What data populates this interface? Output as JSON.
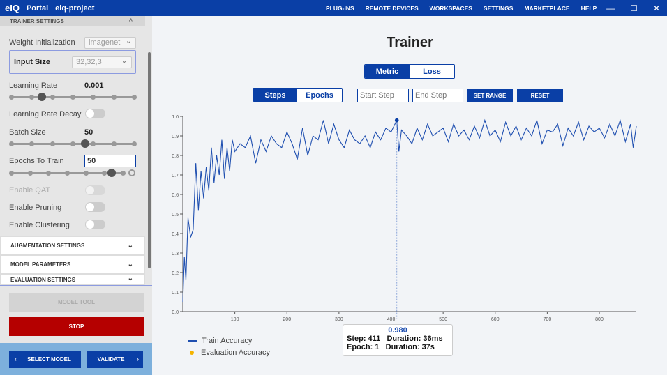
{
  "topbar": {
    "logo": "eIQ",
    "app": "Portal",
    "project": "eiq-project",
    "nav": [
      "PLUG-INS",
      "REMOTE DEVICES",
      "WORKSPACES",
      "SETTINGS",
      "MARKETPLACE",
      "HELP"
    ]
  },
  "sidebar": {
    "section_title": "TRAINER SETTINGS",
    "weight_init": {
      "label": "Weight Initialization",
      "value": "imagenet"
    },
    "input_size": {
      "label": "Input Size",
      "value": "32,32,3"
    },
    "learning_rate": {
      "label": "Learning Rate",
      "value": "0.001",
      "level": 0.25
    },
    "lr_decay": {
      "label": "Learning Rate Decay",
      "on": false
    },
    "batch_size": {
      "label": "Batch Size",
      "value": "50",
      "level": 0.6
    },
    "epochs": {
      "label": "Epochs To Train",
      "value": "50",
      "level": 0.9
    },
    "qat": {
      "label": "Enable QAT",
      "on": false,
      "disabled": true
    },
    "pruning": {
      "label": "Enable Pruning",
      "on": false
    },
    "clustering": {
      "label": "Enable Clustering",
      "on": false
    },
    "accordions": [
      "AUGMENTATION SETTINGS",
      "MODEL PARAMETERS",
      "EVALUATION SETTINGS"
    ],
    "model_tool": "MODEL TOOL",
    "stop": "STOP",
    "select_model": "SELECT MODEL",
    "validate": "VALIDATE"
  },
  "main": {
    "title": "Trainer",
    "metric_tabs": [
      "Metric",
      "Loss"
    ],
    "axis_tabs": [
      "Steps",
      "Epochs"
    ],
    "start_placeholder": "Start Step",
    "end_placeholder": "End Step",
    "set_range": "SET RANGE",
    "reset": "RESET",
    "tooltip": {
      "value": "0.980",
      "step_label": "Step: 411",
      "duration1": "Duration: 36ms",
      "epoch_label": "Epoch: 1",
      "duration2": "Duration: 37s"
    },
    "legend": [
      {
        "name": "Train Accuracy",
        "color": "#1f4fb0"
      },
      {
        "name": "Evaluation Accuracy",
        "color": "#f5b400"
      }
    ]
  },
  "chart_data": {
    "type": "line",
    "xlim": [
      0,
      871
    ],
    "ylim": [
      0,
      1.0
    ],
    "xticks": [
      100,
      200,
      300,
      400,
      500,
      600,
      700,
      800
    ],
    "yticks": [
      "0.0",
      "0.1",
      "0.2",
      "0.3",
      "0.4",
      "0.5",
      "0.6",
      "0.7",
      "0.8",
      "0.9",
      "1.0"
    ],
    "highlight": {
      "x": 411,
      "y": 0.98
    },
    "series": [
      {
        "name": "Train Accuracy",
        "color": "#1f4fb0",
        "x": [
          0,
          3,
          6,
          10,
          15,
          20,
          25,
          30,
          35,
          40,
          45,
          50,
          55,
          60,
          65,
          70,
          75,
          80,
          85,
          90,
          95,
          100,
          110,
          120,
          130,
          140,
          150,
          160,
          170,
          180,
          190,
          200,
          210,
          220,
          230,
          240,
          250,
          260,
          270,
          280,
          290,
          300,
          310,
          320,
          330,
          340,
          350,
          360,
          370,
          380,
          390,
          400,
          411,
          415,
          420,
          430,
          440,
          450,
          460,
          470,
          480,
          490,
          500,
          510,
          520,
          530,
          540,
          550,
          560,
          570,
          580,
          590,
          600,
          610,
          620,
          630,
          640,
          650,
          660,
          670,
          680,
          690,
          700,
          710,
          720,
          730,
          740,
          750,
          760,
          770,
          780,
          790,
          800,
          810,
          820,
          830,
          840,
          850,
          860,
          865,
          871
        ],
        "y": [
          0.05,
          0.28,
          0.16,
          0.48,
          0.38,
          0.42,
          0.76,
          0.52,
          0.72,
          0.58,
          0.74,
          0.62,
          0.84,
          0.66,
          0.8,
          0.7,
          0.88,
          0.68,
          0.84,
          0.72,
          0.88,
          0.82,
          0.86,
          0.84,
          0.9,
          0.76,
          0.88,
          0.82,
          0.9,
          0.86,
          0.84,
          0.92,
          0.86,
          0.78,
          0.94,
          0.8,
          0.9,
          0.88,
          0.98,
          0.86,
          0.96,
          0.88,
          0.84,
          0.93,
          0.88,
          0.86,
          0.9,
          0.84,
          0.92,
          0.88,
          0.94,
          0.92,
          0.98,
          0.82,
          0.93,
          0.9,
          0.86,
          0.94,
          0.88,
          0.96,
          0.9,
          0.92,
          0.94,
          0.87,
          0.96,
          0.9,
          0.93,
          0.88,
          0.95,
          0.89,
          0.98,
          0.9,
          0.93,
          0.87,
          0.97,
          0.9,
          0.95,
          0.88,
          0.94,
          0.9,
          0.98,
          0.86,
          0.93,
          0.92,
          0.96,
          0.85,
          0.94,
          0.9,
          0.97,
          0.88,
          0.95,
          0.92,
          0.94,
          0.89,
          0.96,
          0.9,
          0.98,
          0.87,
          0.96,
          0.84,
          0.95
        ]
      }
    ]
  }
}
